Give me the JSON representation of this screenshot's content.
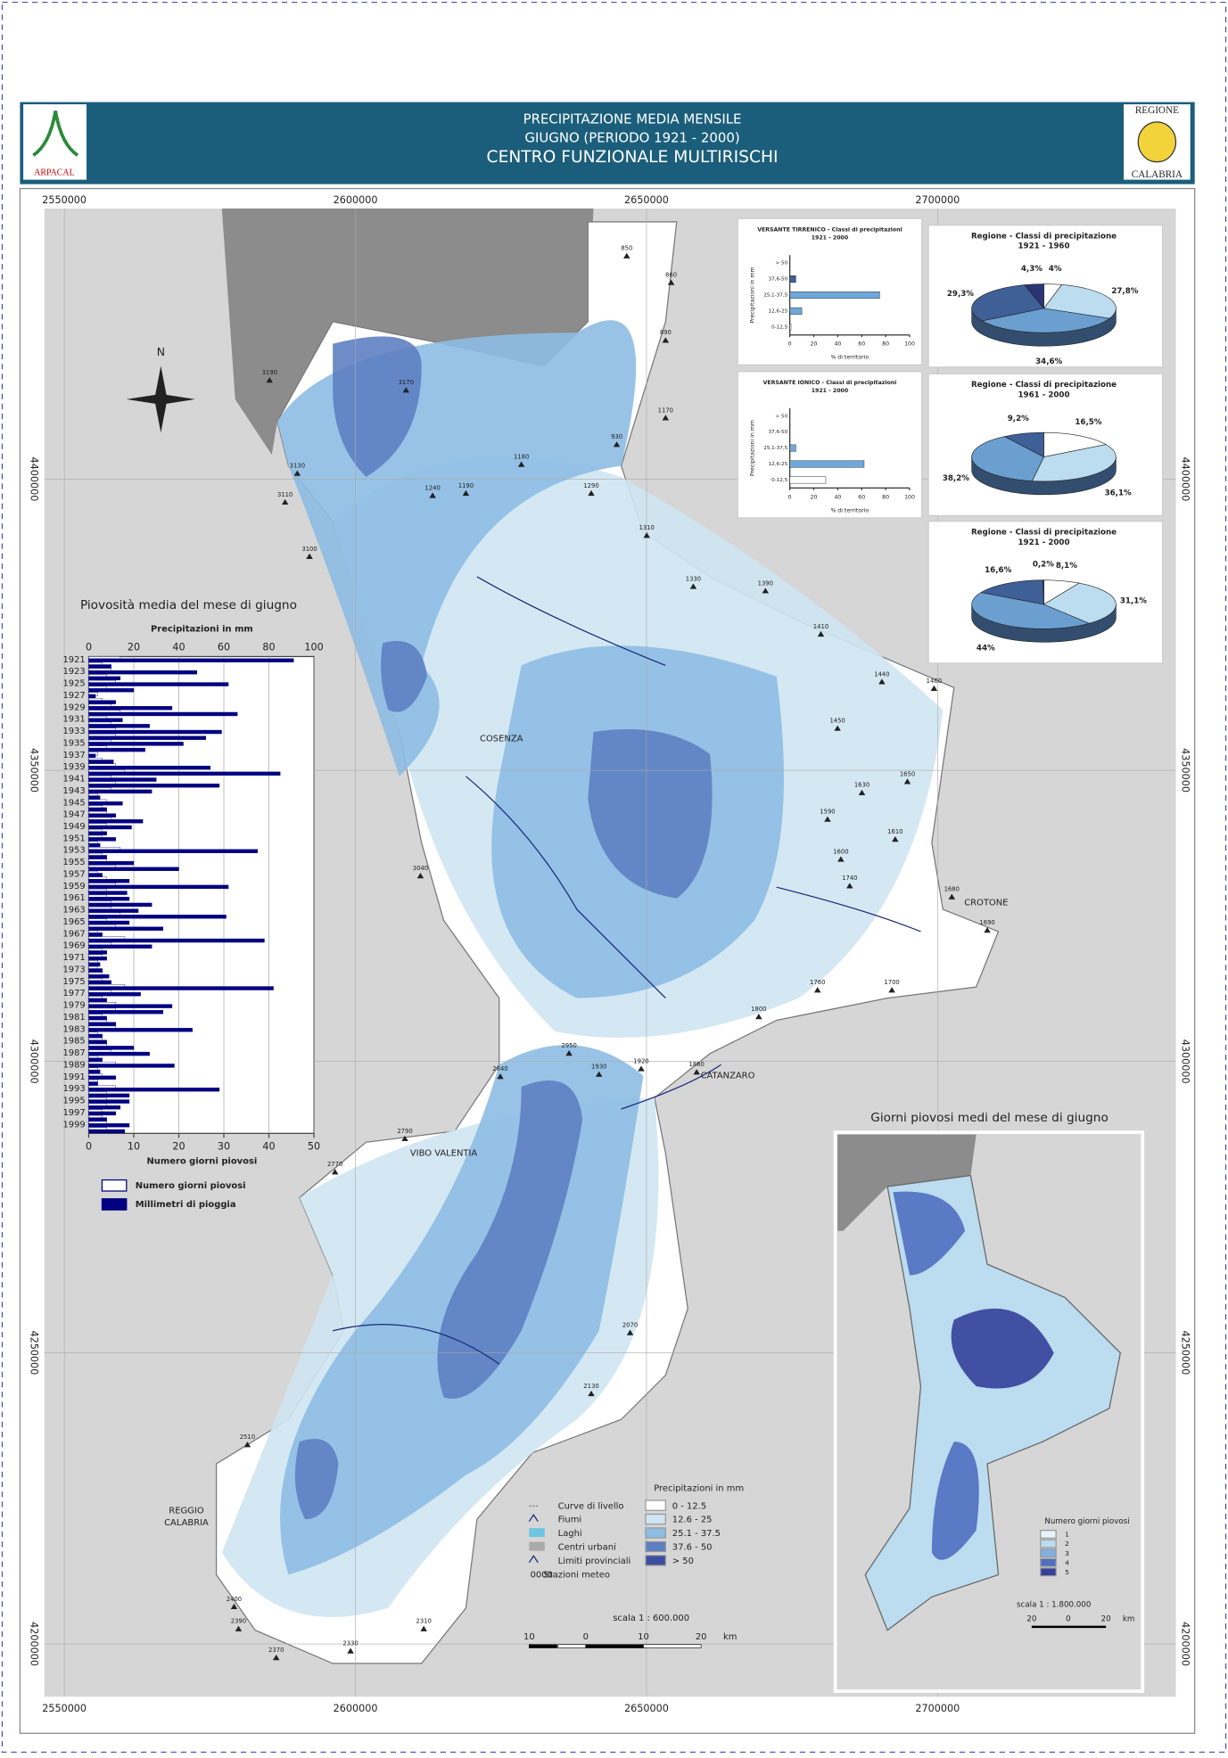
{
  "header": {
    "title_lines": [
      "PRECIPITAZIONE MEDIA MENSILE",
      "GIUGNO (PERIODO 1921 - 2000)",
      "CENTRO FUNZIONALE MULTIRISCHI"
    ],
    "logo_left": "ARPACAL",
    "logo_right": [
      "REGIONE",
      "CALABRIA"
    ]
  },
  "map": {
    "xticks": [
      2550000,
      2600000,
      2650000,
      2700000
    ],
    "yticks": [
      4400000,
      4350000,
      4300000,
      4250000,
      4200000
    ],
    "cities": [
      "COSENZA",
      "CROTONE",
      "CATANZARO",
      "VIBO VALENTIA",
      "REGGIO",
      "CALABRIA"
    ],
    "stations": [
      "850",
      "860",
      "890",
      "930",
      "1170",
      "1180",
      "1190",
      "1240",
      "1290",
      "1310",
      "1330",
      "1390",
      "1410",
      "1440",
      "1460",
      "1450",
      "1650",
      "1630",
      "1590",
      "1610",
      "1600",
      "1740",
      "1680",
      "1690",
      "1700",
      "1760",
      "1800",
      "1880",
      "1920",
      "1930",
      "2070",
      "2130",
      "2310",
      "2330",
      "2370",
      "2390",
      "2400",
      "2510",
      "2770",
      "2790",
      "2840",
      "2950",
      "3040",
      "3100",
      "3110",
      "3130",
      "3170",
      "3190"
    ],
    "map_colors": [
      "#ffffff",
      "#cfe6f2",
      "#8dbde3",
      "#5d7fc2",
      "#3c4f9e"
    ]
  },
  "chart_data": [
    {
      "type": "hbar",
      "title": "Piovosità media del mese di giugno",
      "xlabel": "Precipitazioni in mm",
      "x2label": "Numero giorni piovosi",
      "categories": [
        "1921",
        null,
        "1923",
        null,
        "1925",
        null,
        "1927",
        null,
        "1929",
        null,
        "1931",
        null,
        "1933",
        null,
        "1935",
        null,
        "1937",
        null,
        "1939",
        null,
        "1941",
        null,
        "1943",
        null,
        "1945",
        null,
        "1947",
        null,
        "1949",
        null,
        "1951",
        null,
        "1953",
        null,
        "1955",
        null,
        "1957",
        null,
        "1959",
        null,
        "1961",
        null,
        "1963",
        null,
        "1965",
        null,
        "1967",
        null,
        "1969",
        null,
        "1971",
        null,
        "1973",
        null,
        "1975",
        null,
        "1977",
        null,
        "1979",
        null,
        "1981",
        null,
        "1983",
        null,
        "1985",
        null,
        "1987",
        null,
        "1989",
        null,
        "1991",
        null,
        "1993",
        null,
        "1995",
        null,
        "1997",
        null,
        "1999",
        null
      ],
      "xlim": [
        0,
        100
      ],
      "xticks": [
        0,
        20,
        40,
        60,
        80,
        100
      ],
      "x2lim": [
        0,
        50
      ],
      "x2ticks": [
        0,
        10,
        20,
        30,
        40,
        50
      ],
      "series": [
        {
          "name": "Numero giorni piovosi",
          "color": "#ffffff",
          "axis": "x2",
          "values": [
            7,
            3,
            5,
            4,
            6,
            4,
            2,
            3,
            5,
            7,
            4,
            5,
            6,
            6,
            5,
            4,
            2,
            3,
            6,
            8,
            5,
            6,
            5,
            2,
            4,
            3,
            4,
            5,
            4,
            3,
            3,
            2,
            7,
            3,
            4,
            6,
            2,
            4,
            6,
            4,
            4,
            5,
            5,
            7,
            4,
            6,
            2,
            8,
            5,
            3,
            3,
            2,
            2,
            3,
            3,
            8,
            5,
            3,
            6,
            6,
            3,
            4,
            6,
            2,
            3,
            4,
            5,
            2,
            6,
            2,
            3,
            2,
            6,
            4,
            4,
            4,
            3,
            3,
            4,
            4
          ]
        },
        {
          "name": "Millimetri di pioggia",
          "color": "#000080",
          "values": [
            91,
            10,
            48,
            14,
            62,
            20,
            3,
            12,
            37,
            66,
            15,
            27,
            59,
            52,
            42,
            25,
            3,
            11,
            54,
            85,
            30,
            58,
            28,
            5,
            15,
            8,
            12,
            24,
            19,
            8,
            12,
            5,
            75,
            8,
            20,
            40,
            6,
            18,
            62,
            17,
            18,
            28,
            22,
            61,
            18,
            33,
            6,
            78,
            28,
            8,
            8,
            5,
            6,
            9,
            10,
            82,
            23,
            8,
            37,
            33,
            8,
            12,
            46,
            6,
            8,
            20,
            27,
            6,
            38,
            5,
            12,
            4,
            58,
            18,
            18,
            14,
            12,
            8,
            18,
            16
          ]
        }
      ]
    },
    {
      "type": "mini-hbar",
      "title": "VERSANTE TIRRENICO - Classi di precipitazioni",
      "subtitle": "1921 - 2000",
      "ylabel": "Precipitazioni in mm",
      "xlabel": "% di territorio",
      "categories": [
        "> 50",
        "37,6-50",
        "25,1-37,5",
        "12,6-25",
        "0-12,5"
      ],
      "values": [
        0,
        5,
        75,
        10,
        1
      ],
      "color": "#6fa8dc",
      "xlim": [
        0,
        100
      ],
      "xticks": [
        0,
        20,
        40,
        60,
        80,
        100
      ]
    },
    {
      "type": "mini-hbar",
      "title": "VERSANTE IONICO - Classi di precipitazioni",
      "subtitle": "1921 - 2000",
      "ylabel": "Precipitazioni in mm",
      "xlabel": "% di territorio",
      "categories": [
        "> 50",
        "37,6-50",
        "25,1-37,5",
        "12,6-25",
        "0-12,5"
      ],
      "values": [
        0,
        0,
        5,
        62,
        30
      ],
      "color": "#6fa8dc",
      "xlim": [
        0,
        100
      ],
      "xticks": [
        0,
        20,
        40,
        60,
        80,
        100
      ]
    },
    {
      "type": "pie",
      "title": "Regione - Classi di precipitazione",
      "subtitle": "1921 - 1960",
      "values": [
        4,
        27.8,
        34.6,
        29.3,
        4.3
      ],
      "value_labels": [
        "4%",
        "27,8%",
        "34,6%",
        "29,3%",
        "4,3%"
      ],
      "colors": [
        "#ffffff",
        "#bcdcef",
        "#6a9fd0",
        "#3f5f97",
        "#2b3576"
      ]
    },
    {
      "type": "pie",
      "title": "Regione - Classi di precipitazione",
      "subtitle": "1961 - 2000",
      "values": [
        16.5,
        36.1,
        38.2,
        9.2
      ],
      "value_labels": [
        "16,5%",
        "36,1%",
        "38,2%",
        "9,2%"
      ],
      "colors": [
        "#ffffff",
        "#bcdcef",
        "#6a9fd0",
        "#3f5f97"
      ]
    },
    {
      "type": "pie",
      "title": "Regione - Classi di precipitazione",
      "subtitle": "1921 - 2000",
      "values": [
        8.1,
        31.1,
        44,
        16.6,
        0.2
      ],
      "value_labels": [
        "8,1%",
        "31,1%",
        "44%",
        "16,6%",
        "0,2%"
      ],
      "colors": [
        "#ffffff",
        "#bcdcef",
        "#6a9fd0",
        "#3f5f97",
        "#2b3576"
      ]
    }
  ],
  "legend": {
    "items": [
      "Curve di livello",
      "Fiumi",
      "Laghi",
      "Centri urbani",
      "Limiti provinciali",
      "Stazioni meteo"
    ],
    "station_code": "0000",
    "precip_title": "Precipitazioni in mm",
    "classes": [
      "0 - 12.5",
      "12.6 - 25",
      "25.1 - 37.5",
      "37.6 - 50",
      "> 50"
    ]
  },
  "scale": {
    "text": "scala 1 : 600.000",
    "labels": [
      "10",
      "0",
      "10",
      "20"
    ],
    "unit": "km"
  },
  "inset": {
    "title": "Giorni piovosi medi del mese di giugno",
    "legend_title": "Numero giorni piovosi",
    "classes": [
      "1",
      "2",
      "3",
      "4",
      "5"
    ],
    "colors": [
      "#e8f2fa",
      "#bcdcef",
      "#7fb0e0",
      "#4f6fc0",
      "#34409a"
    ],
    "scale": "scala 1 : 1.800.000",
    "scale_labels": [
      "20",
      "0",
      "20"
    ],
    "unit": "km"
  }
}
